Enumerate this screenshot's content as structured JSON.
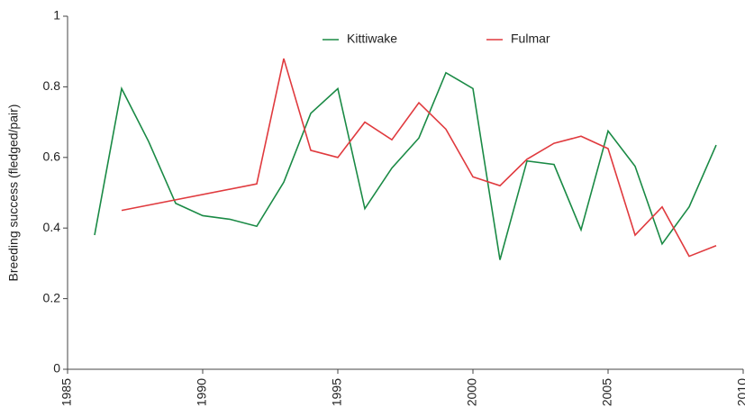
{
  "chart_data": {
    "type": "line",
    "ylabel": "Breeding success (fledged/pair)",
    "xlim": [
      1985,
      2010
    ],
    "xticks": [
      1985,
      1990,
      1995,
      2000,
      2005,
      2010
    ],
    "ylim": [
      0,
      1
    ],
    "yticks": [
      0,
      0.2,
      0.4,
      0.6,
      0.8,
      1
    ],
    "grid": false,
    "legend": "top",
    "series": [
      {
        "name": "Kittiwake",
        "color": "#1a8a45",
        "x": [
          1986,
          1987,
          1988,
          1989,
          1990,
          1991,
          1992,
          1993,
          1994,
          1995,
          1996,
          1997,
          1998,
          1999,
          2000,
          2001,
          2002,
          2003,
          2004,
          2005,
          2006,
          2007,
          2008,
          2009
        ],
        "values": [
          0.38,
          0.795,
          0.645,
          0.47,
          0.435,
          0.425,
          0.405,
          0.53,
          0.725,
          0.795,
          0.455,
          0.57,
          0.655,
          0.84,
          0.795,
          0.31,
          0.59,
          0.58,
          0.395,
          0.675,
          0.575,
          0.355,
          0.46,
          0.635
        ]
      },
      {
        "name": "Fulmar",
        "color": "#e03a3e",
        "x": [
          1987,
          1992,
          1993,
          1994,
          1995,
          1996,
          1997,
          1998,
          1999,
          2000,
          2001,
          2002,
          2003,
          2004,
          2005,
          2006,
          2007,
          2008,
          2009
        ],
        "values": [
          0.45,
          0.525,
          0.88,
          0.62,
          0.6,
          0.7,
          0.65,
          0.755,
          0.68,
          0.545,
          0.52,
          0.595,
          0.64,
          0.66,
          0.625,
          0.38,
          0.46,
          0.32,
          0.35
        ]
      }
    ]
  }
}
